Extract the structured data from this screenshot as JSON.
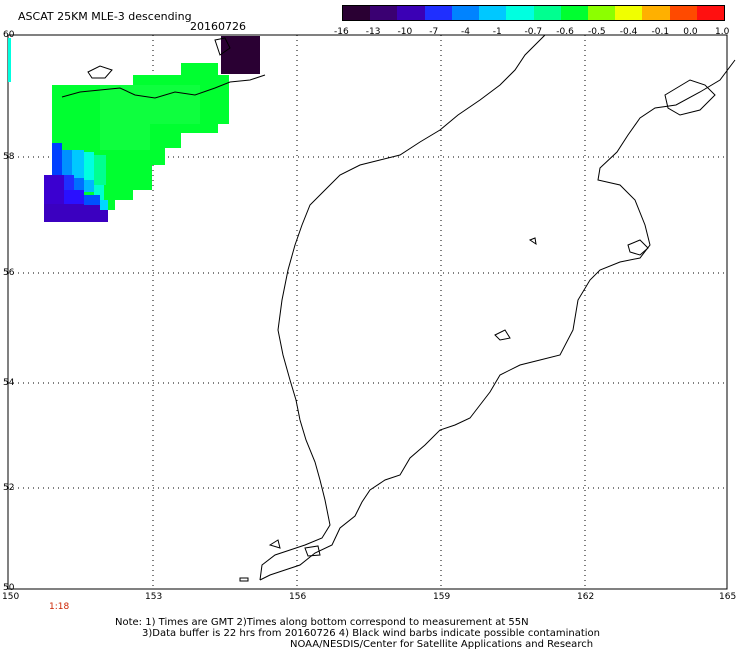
{
  "header": {
    "title": "ASCAT 25KM MLE-3 descending",
    "date": "20160726"
  },
  "colorbar": {
    "labels": [
      "-16",
      "-13",
      "-10",
      "-7",
      "-4",
      "-1",
      "-0.7",
      "-0.6",
      "-0.5",
      "-0.4",
      "-0.1",
      "0.0",
      "1.0"
    ],
    "colors": [
      "#2a0033",
      "#3a0072",
      "#3b00b5",
      "#1f2fff",
      "#0083ff",
      "#00c8ff",
      "#00ffe0",
      "#00ff90",
      "#00ff30",
      "#8cff00",
      "#f0ff00",
      "#ffb000",
      "#ff4a00",
      "#ff1010"
    ]
  },
  "map": {
    "lat_labels": [
      "60",
      "58",
      "56",
      "54",
      "52",
      "50"
    ],
    "lon_labels": [
      "150",
      "153",
      "156",
      "159",
      "162",
      "165"
    ],
    "time_label": "1:18"
  },
  "notes": {
    "line1": "Note: 1) Times are GMT 2)Times along bottom correspond to measurement at 55N",
    "line2": "3)Data buffer is 22 hrs from 20160726 4) Black wind barbs indicate possible contamination",
    "line3": "NOAA/NESDIS/Center for Satellite Applications and Research"
  }
}
